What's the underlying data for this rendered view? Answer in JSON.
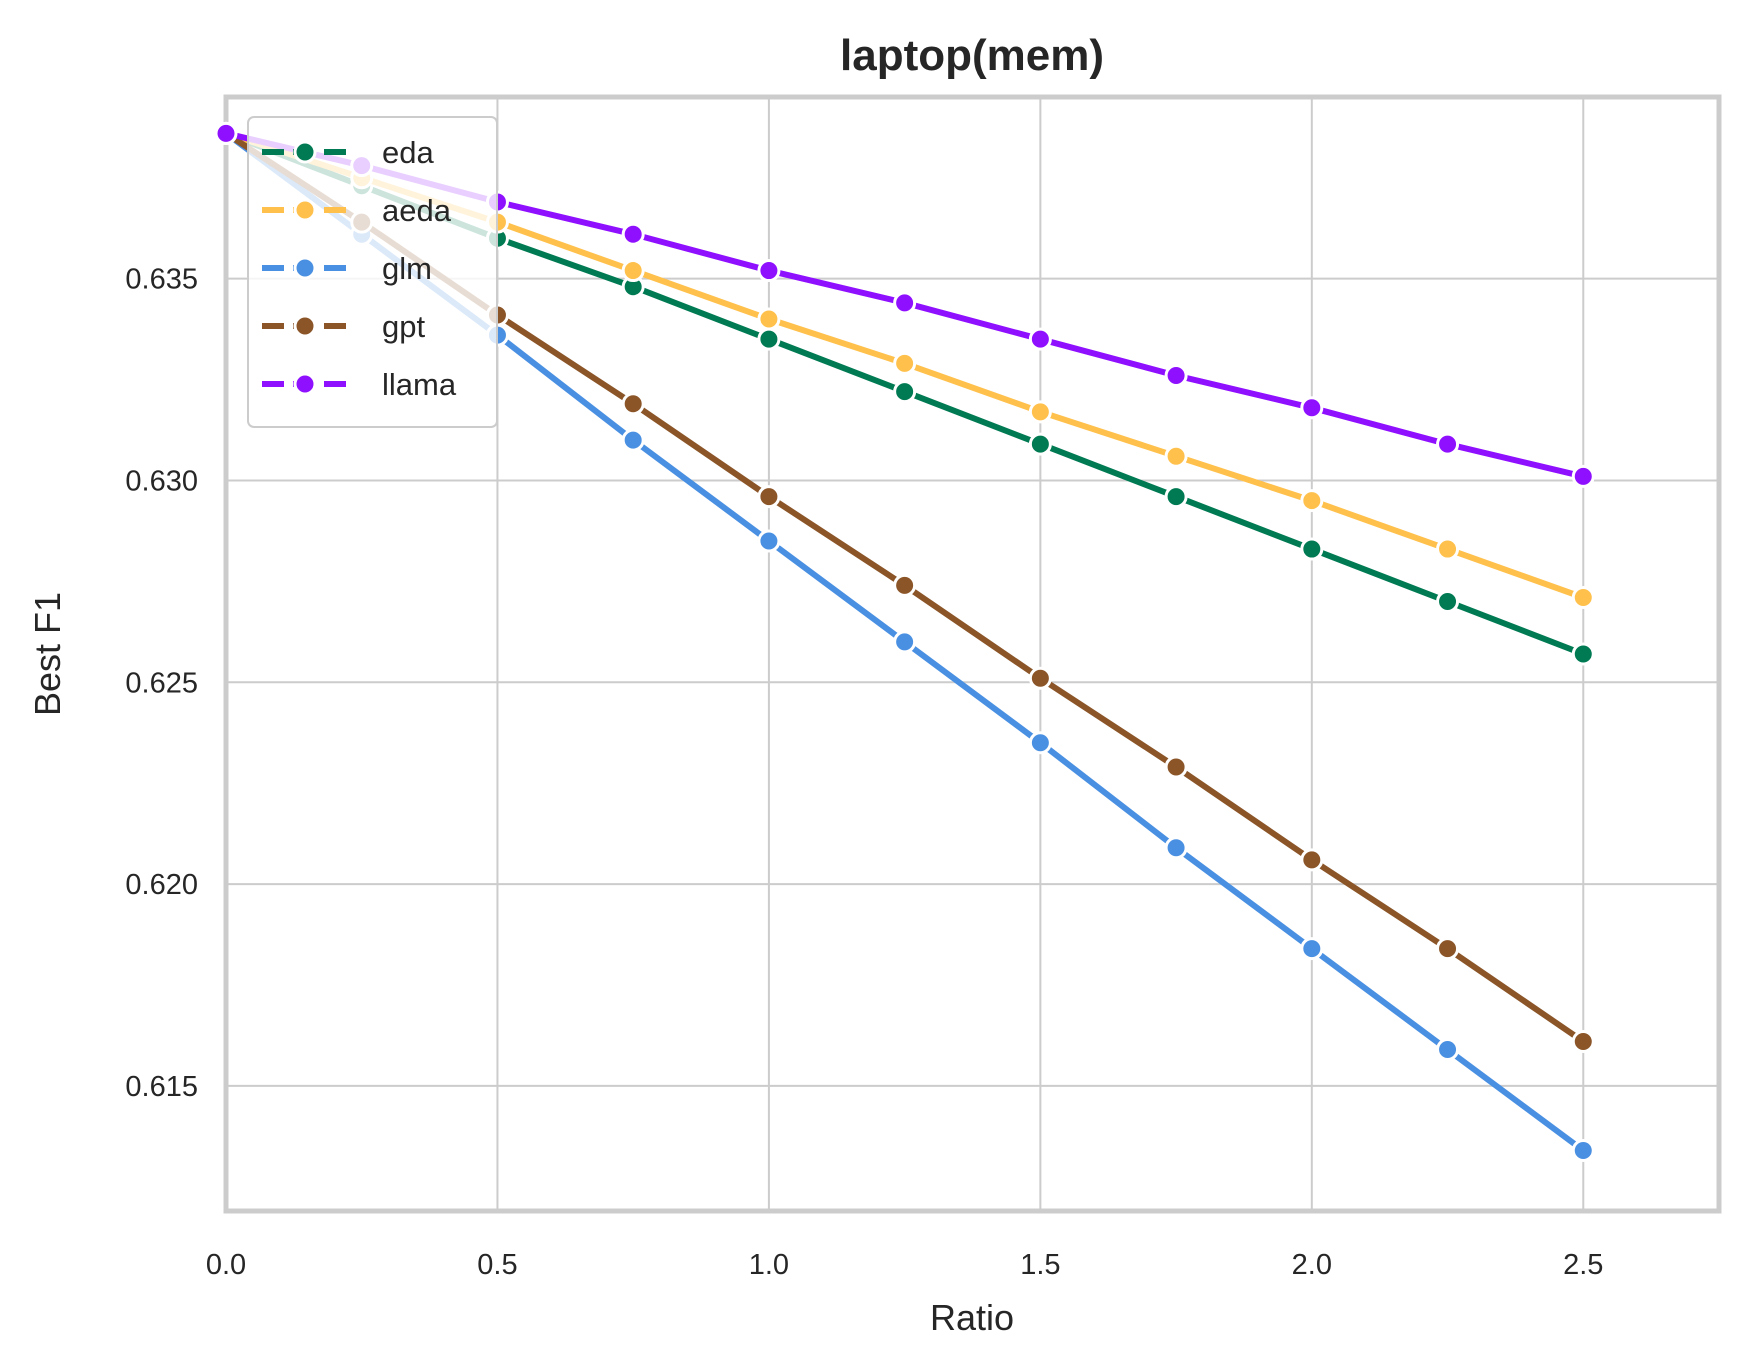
{
  "chart_data": {
    "type": "line",
    "title": "laptop(mem)",
    "xlabel": "Ratio",
    "ylabel": "Best F1",
    "xlim": [
      0.0,
      2.75
    ],
    "ylim": [
      0.6119,
      0.6395
    ],
    "x_ticks": [
      "0.0",
      "0.5",
      "1.0",
      "1.5",
      "2.0",
      "2.5"
    ],
    "y_ticks": [
      "0.615",
      "0.620",
      "0.625",
      "0.630",
      "0.635"
    ],
    "grid": true,
    "legend_position": "top-left",
    "x": [
      0.0,
      0.25,
      0.5,
      0.75,
      1.0,
      1.25,
      1.5,
      1.75,
      2.0,
      2.25,
      2.5
    ],
    "series": [
      {
        "name": "eda",
        "color": "#007a52",
        "values": [
          0.6386,
          0.6373,
          0.636,
          0.6348,
          0.6335,
          0.6322,
          0.6309,
          0.6296,
          0.6283,
          0.627,
          0.6257
        ]
      },
      {
        "name": "aeda",
        "color": "#ffc04c",
        "values": [
          0.6386,
          0.6375,
          0.6364,
          0.6352,
          0.634,
          0.6329,
          0.6317,
          0.6306,
          0.6295,
          0.6283,
          0.6271
        ]
      },
      {
        "name": "glm",
        "color": "#4a90e2",
        "values": [
          0.6386,
          0.6361,
          0.6336,
          0.631,
          0.6285,
          0.626,
          0.6235,
          0.6209,
          0.6184,
          0.6159,
          0.6134
        ]
      },
      {
        "name": "gpt",
        "color": "#8b5528",
        "values": [
          0.6386,
          0.6364,
          0.6341,
          0.6319,
          0.6296,
          0.6274,
          0.6251,
          0.6229,
          0.6206,
          0.6184,
          0.6161
        ]
      },
      {
        "name": "llama",
        "color": "#8f0fff",
        "values": [
          0.6386,
          0.6378,
          0.6369,
          0.6361,
          0.6352,
          0.6344,
          0.6335,
          0.6326,
          0.6318,
          0.6309,
          0.6301
        ]
      }
    ]
  }
}
